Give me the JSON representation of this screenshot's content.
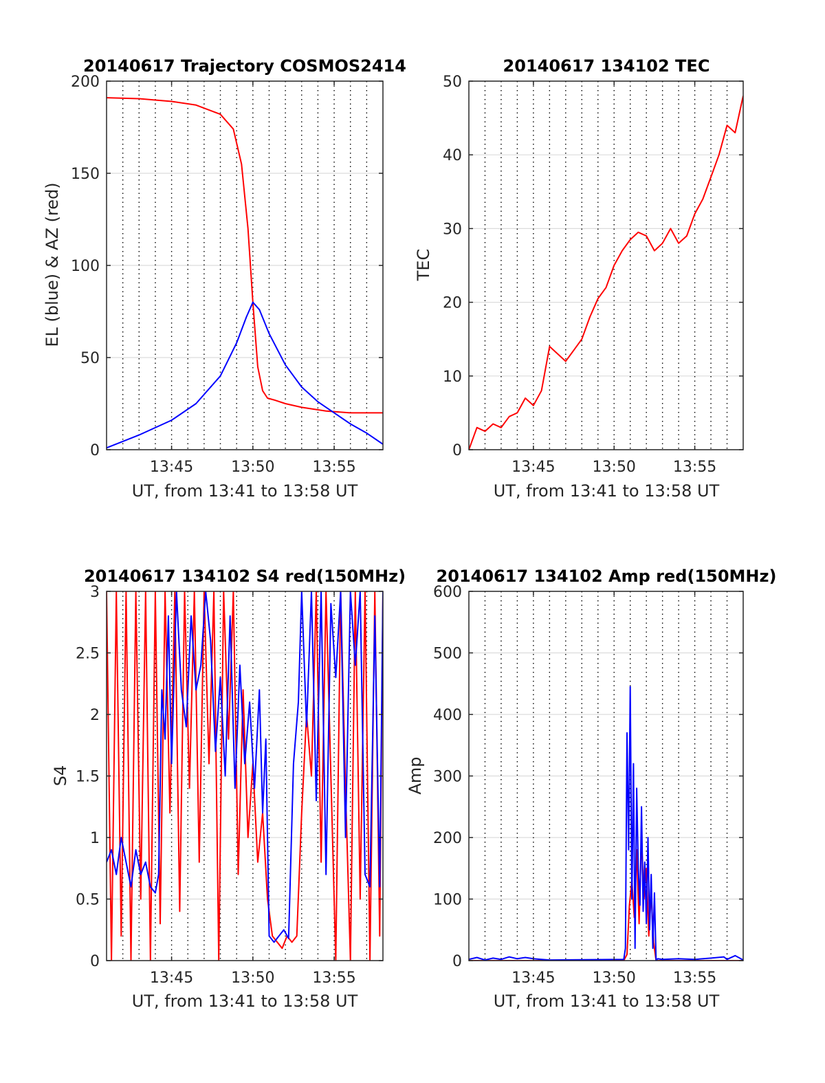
{
  "chart_data": [
    {
      "id": "trajectory",
      "type": "line",
      "title": "20140617 Trajectory COSMOS2414",
      "xlabel": "UT, from 13:41 to 13:58 UT",
      "ylabel": "EL (blue) & AZ (red)",
      "xlim_minutes": [
        0,
        17
      ],
      "ylim": [
        0,
        200
      ],
      "yticks": [
        0,
        50,
        100,
        150,
        200
      ],
      "xticks": [
        {
          "minute": 4,
          "label": "13:45"
        },
        {
          "minute": 9,
          "label": "13:50"
        },
        {
          "minute": 14,
          "label": "13:55"
        }
      ],
      "grid": true,
      "series": [
        {
          "color": "#ff0000",
          "x": [
            0,
            2,
            4,
            5.5,
            7,
            7.8,
            8.3,
            8.7,
            9,
            9.3,
            9.6,
            9.9,
            10.3,
            11,
            12,
            13.5,
            15,
            17
          ],
          "y": [
            191,
            190.5,
            189,
            187,
            182,
            174,
            155,
            120,
            80,
            45,
            32,
            28,
            27,
            25,
            23,
            21,
            20,
            20
          ]
        },
        {
          "color": "#0000ff",
          "x": [
            0,
            2,
            4,
            5.5,
            7,
            8,
            8.6,
            9,
            9.4,
            10,
            11,
            12,
            13,
            14,
            15,
            16,
            17
          ],
          "y": [
            1,
            8,
            16,
            25,
            40,
            58,
            72,
            80,
            76,
            63,
            46,
            34,
            26,
            20,
            14,
            9,
            3
          ]
        }
      ]
    },
    {
      "id": "tec",
      "type": "line",
      "title": "20140617 134102 TEC",
      "xlabel": "UT, from 13:41 to 13:58 UT",
      "ylabel": "TEC",
      "xlim_minutes": [
        0,
        17
      ],
      "ylim": [
        0,
        50
      ],
      "yticks": [
        0,
        10,
        20,
        30,
        40,
        50
      ],
      "xticks": [
        {
          "minute": 4,
          "label": "13:45"
        },
        {
          "minute": 9,
          "label": "13:50"
        },
        {
          "minute": 14,
          "label": "13:55"
        }
      ],
      "grid": true,
      "series": [
        {
          "color": "#ff0000",
          "x": [
            0,
            0.5,
            1,
            1.5,
            2,
            2.5,
            3,
            3.5,
            4,
            4.5,
            5,
            5.5,
            6,
            6.5,
            7,
            7.5,
            8,
            8.5,
            9,
            9.5,
            10,
            10.5,
            11,
            11.5,
            12,
            12.5,
            13,
            13.5,
            14,
            14.5,
            15,
            15.5,
            16,
            16.5,
            17
          ],
          "y": [
            0,
            3,
            2.5,
            3.5,
            3,
            4.5,
            5,
            7,
            6,
            8,
            14,
            13,
            12,
            13.5,
            15,
            18,
            20.5,
            22,
            25,
            27,
            28.5,
            29.5,
            29,
            27,
            28,
            30,
            28,
            29,
            32,
            34,
            37,
            40,
            44,
            43,
            48
          ]
        }
      ]
    },
    {
      "id": "s4",
      "type": "line",
      "title": "20140617 134102 S4 red(150MHz)",
      "xlabel": "UT, from 13:41 to 13:58 UT",
      "ylabel": "S4",
      "xlim_minutes": [
        0,
        17
      ],
      "ylim": [
        0,
        3
      ],
      "yticks": [
        0,
        0.5,
        1,
        1.5,
        2,
        2.5,
        3
      ],
      "xticks": [
        {
          "minute": 4,
          "label": "13:45"
        },
        {
          "minute": 9,
          "label": "13:50"
        },
        {
          "minute": 14,
          "label": "13:55"
        }
      ],
      "grid": true,
      "series": [
        {
          "color": "#ff0000",
          "x": [
            0,
            0.3,
            0.6,
            0.9,
            1.2,
            1.5,
            1.8,
            2.1,
            2.4,
            2.7,
            3,
            3.3,
            3.6,
            3.9,
            4.2,
            4.5,
            4.8,
            5.1,
            5.4,
            5.7,
            6,
            6.3,
            6.6,
            6.9,
            7.2,
            7.5,
            7.8,
            8.1,
            8.4,
            8.7,
            9,
            9.3,
            9.6,
            9.9,
            10.2,
            10.5,
            10.8,
            11.1,
            11.4,
            11.7,
            12,
            12.3,
            12.6,
            12.9,
            13.2,
            13.5,
            13.8,
            14.1,
            14.4,
            14.7,
            15,
            15.3,
            15.6,
            15.9,
            16.2,
            16.5,
            16.8,
            17
          ],
          "y": [
            3,
            0,
            3,
            0.2,
            3,
            0,
            3,
            0.5,
            3,
            0,
            3,
            0.3,
            3,
            1.2,
            3,
            0.4,
            3,
            1.4,
            3,
            0.8,
            3,
            1.6,
            3,
            0,
            3,
            1.8,
            3,
            0.7,
            2.2,
            1,
            1.6,
            0.8,
            1.2,
            0.5,
            0.2,
            0.15,
            0.1,
            0.2,
            0.15,
            0.2,
            1.2,
            2,
            1.5,
            3,
            0.8,
            3,
            1.5,
            0,
            3,
            1.4,
            0,
            3,
            0.5,
            3,
            0,
            3,
            0.2,
            3
          ]
        },
        {
          "color": "#0000ff",
          "x": [
            0,
            0.3,
            0.6,
            0.9,
            1.2,
            1.5,
            1.8,
            2.1,
            2.4,
            2.7,
            3,
            3.2,
            3.4,
            3.6,
            3.8,
            4,
            4.3,
            4.6,
            4.9,
            5.2,
            5.5,
            5.8,
            6.1,
            6.4,
            6.7,
            7,
            7.3,
            7.6,
            7.9,
            8.2,
            8.5,
            8.8,
            9.1,
            9.4,
            9.6,
            9.8,
            10,
            10.3,
            10.6,
            10.9,
            11.2,
            11.5,
            11.8,
            12,
            12.3,
            12.6,
            12.9,
            13.2,
            13.5,
            13.8,
            14.1,
            14.4,
            14.7,
            15,
            15.3,
            15.6,
            15.9,
            16.2,
            16.5,
            16.8,
            17
          ],
          "y": [
            0.8,
            0.9,
            0.7,
            1,
            0.8,
            0.6,
            0.9,
            0.7,
            0.8,
            0.6,
            0.55,
            0.7,
            2.2,
            1.8,
            2.8,
            1.6,
            3,
            2.2,
            1.9,
            2.8,
            2.2,
            2.4,
            3,
            2.6,
            1.7,
            2.3,
            1.5,
            2.8,
            1.4,
            2.4,
            1.6,
            2.1,
            1.4,
            2.2,
            1.2,
            1.8,
            0.2,
            0.15,
            0.2,
            0.25,
            0.18,
            1.6,
            2.1,
            3,
            1.9,
            3,
            1.3,
            3,
            0.7,
            2.9,
            2.3,
            3,
            1,
            3,
            2.4,
            3,
            0.7,
            0.6,
            2.8,
            0.6,
            3
          ]
        }
      ]
    },
    {
      "id": "amp",
      "type": "line",
      "title": "20140617 134102 Amp red(150MHz)",
      "xlabel": "UT, from 13:41 to 13:58 UT",
      "ylabel": "Amp",
      "xlim_minutes": [
        0,
        17
      ],
      "ylim": [
        0,
        600
      ],
      "yticks": [
        0,
        100,
        200,
        300,
        400,
        500,
        600
      ],
      "xticks": [
        {
          "minute": 4,
          "label": "13:45"
        },
        {
          "minute": 9,
          "label": "13:50"
        },
        {
          "minute": 14,
          "label": "13:55"
        }
      ],
      "grid": true,
      "series": [
        {
          "color": "#ff0000",
          "x": [
            0,
            9.6,
            9.8,
            9.95,
            10.1,
            10.25,
            10.4,
            10.55,
            10.7,
            10.85,
            11,
            11.15,
            11.3,
            11.45,
            11.6,
            17
          ],
          "y": [
            0,
            0,
            10,
            90,
            130,
            70,
            180,
            60,
            200,
            100,
            150,
            40,
            110,
            30,
            0,
            0
          ]
        },
        {
          "color": "#0000ff",
          "x": [
            0,
            0.5,
            1,
            1.5,
            2,
            2.5,
            3,
            3.5,
            4,
            4.5,
            5,
            9.6,
            9.7,
            9.8,
            9.9,
            10,
            10.1,
            10.2,
            10.3,
            10.4,
            10.5,
            10.6,
            10.7,
            10.8,
            10.9,
            11,
            11.1,
            11.2,
            11.3,
            11.4,
            11.5,
            11.6,
            11.7,
            12,
            13,
            14,
            15,
            15.8,
            16,
            16.5,
            17
          ],
          "y": [
            2,
            5,
            1,
            4,
            2,
            6,
            3,
            5,
            3,
            2,
            1,
            2,
            20,
            370,
            180,
            445,
            100,
            320,
            20,
            280,
            150,
            90,
            250,
            80,
            160,
            60,
            200,
            50,
            140,
            20,
            110,
            0,
            3,
            2,
            3,
            2,
            4,
            6,
            2,
            8,
            1
          ]
        }
      ]
    }
  ]
}
